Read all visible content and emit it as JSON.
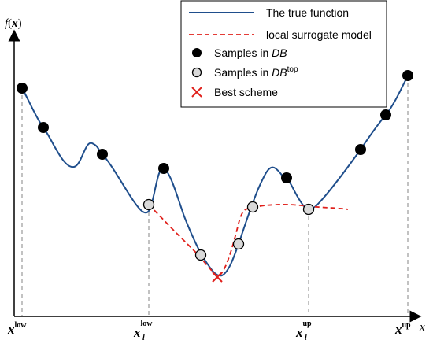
{
  "axes": {
    "y_label": "f",
    "y_label_arg": "x",
    "x_label": "x"
  },
  "x_ticks": [
    {
      "main": "x",
      "sub": "low",
      "sub_pos": "super"
    },
    {
      "main": "x",
      "sub": "low",
      "sub_pos": "both",
      "lower": "l"
    },
    {
      "main": "x",
      "sub": "up",
      "sub_pos": "both",
      "lower": "l"
    },
    {
      "main": "x",
      "sub": "up",
      "sub_pos": "super"
    }
  ],
  "legend": {
    "items": [
      {
        "label": "The true function",
        "marker": "solid-line",
        "color": "#1f4e8c"
      },
      {
        "label": "local surrogate model",
        "marker": "dashed-line",
        "color": "#e0201b"
      },
      {
        "label": "Samples in ",
        "label_italic": "DB",
        "label_sup": "",
        "marker": "filled-circle",
        "color": "#000000"
      },
      {
        "label": "Samples in ",
        "label_italic": "DB",
        "label_sup": "top",
        "marker": "open-circle",
        "color": "#d9d9d9"
      },
      {
        "label": "Best scheme",
        "marker": "cross",
        "color": "#e0201b"
      }
    ]
  },
  "colors": {
    "true_function": "#1f4e8c",
    "surrogate": "#e0201b",
    "db_sample": "#000000",
    "dbtop_fill": "#d9d9d9",
    "best": "#e0201b",
    "guide": "#9a9a9a"
  }
}
